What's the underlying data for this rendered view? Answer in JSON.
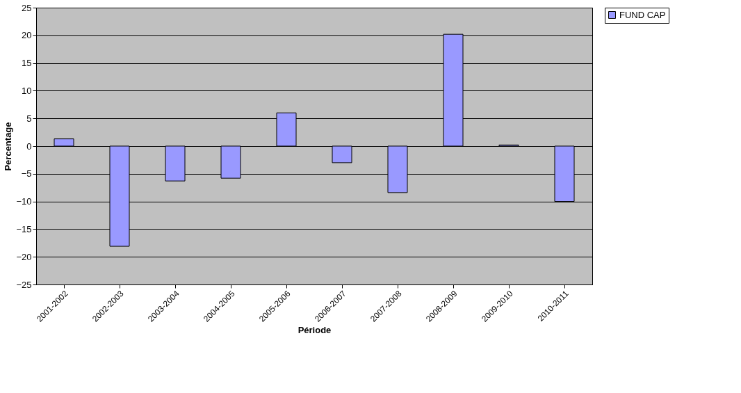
{
  "chart_data": {
    "type": "bar",
    "xlabel": "Période",
    "ylabel": "Percentage",
    "categories": [
      "2001-2002",
      "2002-2003",
      "2003-2004",
      "2004-2005",
      "2005-2006",
      "2006-2007",
      "2007-2008",
      "2008-2009",
      "2009-2010",
      "2010-2011"
    ],
    "series": [
      {
        "name": "FUND CAP",
        "color": "#9999ff",
        "values": [
          1.3,
          -18.1,
          -6.3,
          -5.8,
          6.0,
          -3.0,
          -8.4,
          20.2,
          0.2,
          -10.0
        ]
      }
    ],
    "ylim": [
      -25,
      25
    ],
    "yticks": [
      -25,
      -20,
      -15,
      -10,
      -5,
      0,
      5,
      10,
      15,
      20,
      25
    ],
    "grid": "y",
    "legend": "right"
  }
}
